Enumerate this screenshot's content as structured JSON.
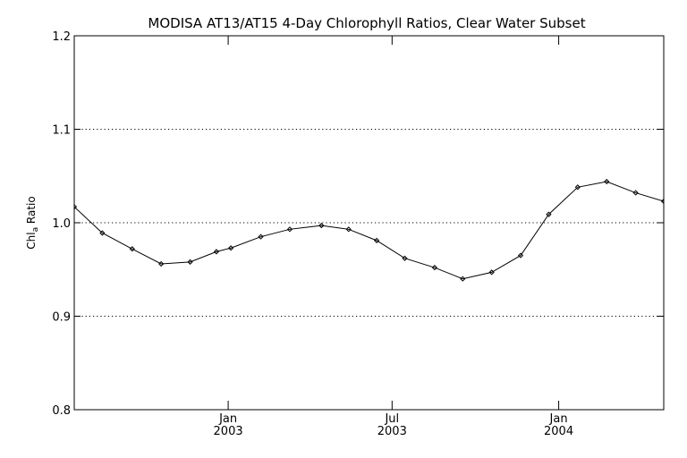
{
  "chart_data": {
    "type": "line",
    "title": "MODISA AT13/AT15 4-Day Chlorophyll Ratios, Clear Water Subset",
    "xlabel": "",
    "ylabel": {
      "base": "Chl",
      "subscript": "a",
      "suffix": " Ratio"
    },
    "ylim": [
      0.8,
      1.2
    ],
    "yticks": [
      "0.8",
      "0.9",
      "1.0",
      "1.1",
      "1.2"
    ],
    "ytick_values": [
      0.8,
      0.9,
      1.0,
      1.1,
      1.2
    ],
    "xlim": [
      "2002-07-15",
      "2004-04-26"
    ],
    "xticks": [
      {
        "date": "2003-01-01",
        "month": "Jan",
        "year": "2003"
      },
      {
        "date": "2003-07-01",
        "month": "Jul",
        "year": "2003"
      },
      {
        "date": "2004-01-01",
        "month": "Jan",
        "year": "2004"
      }
    ],
    "grid": "horizontal dotted",
    "line_color": "#000000",
    "marker": "diamond",
    "series": [
      {
        "x": [
          "2002-07-15",
          "2002-08-15",
          "2002-09-17",
          "2002-10-19",
          "2002-11-20",
          "2002-12-19",
          "2003-01-04",
          "2003-02-06",
          "2003-03-10",
          "2003-04-14",
          "2003-05-14",
          "2003-06-14",
          "2003-07-15",
          "2003-08-17",
          "2003-09-17",
          "2003-10-19",
          "2003-11-20",
          "2003-12-21",
          "2004-01-22",
          "2004-02-23",
          "2004-03-26",
          "2004-04-26"
        ],
        "values": [
          1.017,
          0.989,
          0.972,
          0.956,
          0.958,
          0.969,
          0.973,
          0.985,
          0.993,
          0.997,
          0.993,
          0.981,
          0.962,
          0.952,
          0.94,
          0.947,
          0.965,
          1.009,
          1.038,
          1.044,
          1.032,
          1.023
        ]
      }
    ]
  }
}
